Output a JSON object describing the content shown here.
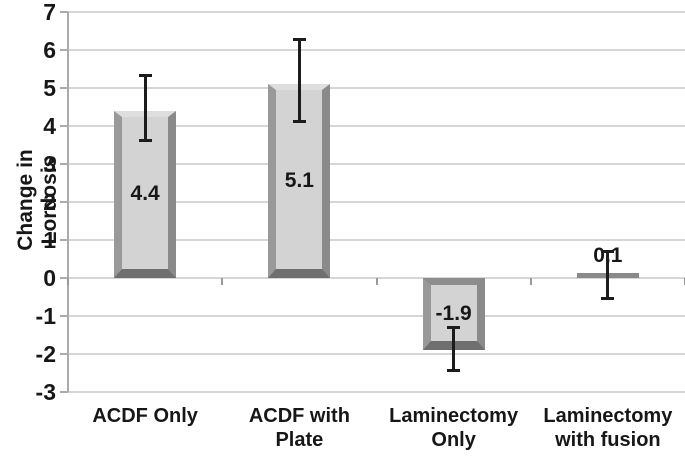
{
  "chart_data": {
    "type": "bar",
    "title": "",
    "xlabel": "",
    "ylabel": "Change in Lordosis",
    "ylim": [
      -3,
      7
    ],
    "yticks": [
      7,
      6,
      5,
      4,
      3,
      2,
      1,
      0,
      -1,
      -2,
      -3
    ],
    "grid": true,
    "legend": false,
    "categories": [
      "ACDF Only",
      "ACDF with Plate",
      "Laminectomy Only",
      "Laminectomy with fusion"
    ],
    "category_label_lines": [
      [
        "ACDF Only"
      ],
      [
        "ACDF with",
        "Plate"
      ],
      [
        "Laminectomy",
        "Only"
      ],
      [
        "Laminectomy",
        "with fusion"
      ]
    ],
    "series": [
      {
        "name": "Change in Lordosis",
        "values": [
          4.4,
          5.1,
          -1.9,
          0.1
        ],
        "value_labels": [
          "4.4",
          "5.1",
          "-1.9",
          "0.1"
        ],
        "error_bars": [
          {
            "high": 5.35,
            "low": 3.6
          },
          {
            "high": 6.3,
            "low": 4.1
          },
          {
            "high": -1.3,
            "low": -2.45
          },
          {
            "high": 0.7,
            "low": -0.55
          }
        ]
      }
    ],
    "colors": {
      "background": "#ffffff",
      "bar_fill": "#d3d3d3",
      "bar_edge_light": "#dedede",
      "bar_edge_side": "#999999",
      "bar_edge_dark": "#6f6f6f",
      "gridline": "#d6d6d6",
      "axis_line": "#ababab",
      "error_bar": "#1c1c1c",
      "text": "#171717"
    }
  }
}
